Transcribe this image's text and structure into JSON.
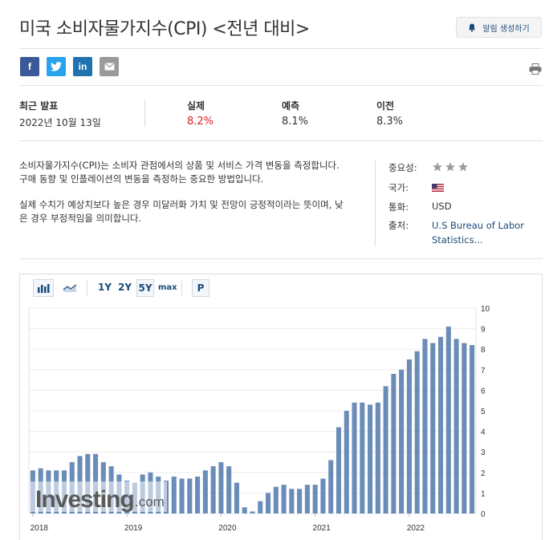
{
  "title": "미국 소비자물가지수(CPI) <전년 대비>",
  "alert_button": {
    "label": "알림 생성하기",
    "icon": "bell-icon"
  },
  "share": {
    "facebook": "f",
    "twitter": "twitter",
    "linkedin": "in",
    "email": "email",
    "print": "print"
  },
  "stats": {
    "latest_label": "최근 발표",
    "latest_date": "2022년 10월 13일",
    "actual_label": "실제",
    "actual_value": "8.2%",
    "forecast_label": "예측",
    "forecast_value": "8.1%",
    "previous_label": "이전",
    "previous_value": "8.3%",
    "actual_color": "#dc1f1f"
  },
  "description": {
    "p1": "소비자물가지수(CPI)는 소비자 관점에서의 상품 및 서비스 가격 변동을 측정합니다. 구매 동향 및 인플레이션의 변동을 측정하는 중요한 방법입니다.",
    "p2": "실제 수치가 예상치보다 높은 경우 미달러화 가치 및 전망이 긍정적이라는 뜻이며, 낮은 경우 부정적임을 의미합니다."
  },
  "meta": {
    "importance_label": "중요성:",
    "importance_stars": 3,
    "country_label": "국가:",
    "country_flag": "us-flag-icon",
    "currency_label": "통화:",
    "currency_value": "USD",
    "source_label": "출처:",
    "source_value": "U.S Bureau of Labor Statistics..."
  },
  "chart_toolbar": {
    "bar_icon": "bar-chart-icon",
    "line_icon": "line-chart-icon",
    "ranges": [
      "1Y",
      "2Y",
      "5Y",
      "max"
    ],
    "selected_range": "5Y",
    "p_label": "P"
  },
  "watermark": {
    "brand": "Investing",
    "suffix": ".com"
  },
  "chart_data": {
    "type": "bar",
    "color": "#6a8cb8",
    "xlabel": "",
    "ylabel": "",
    "ylim": [
      0,
      10
    ],
    "y_ticks": [
      "0",
      "1",
      "2",
      "3",
      "4",
      "5",
      "6",
      "7",
      "8",
      "9",
      "10"
    ],
    "x_ticks": [
      "2018",
      "2019",
      "2020",
      "2021",
      "2022"
    ],
    "grid": true,
    "start_month": "2018-01",
    "values": [
      2.1,
      2.2,
      2.1,
      2.1,
      2.1,
      2.5,
      2.8,
      2.9,
      2.9,
      2.5,
      2.3,
      1.9,
      1.6,
      1.5,
      1.9,
      2.0,
      1.8,
      1.6,
      1.8,
      1.7,
      1.7,
      1.8,
      2.1,
      2.3,
      2.5,
      2.3,
      1.5,
      0.3,
      0.1,
      0.6,
      1.0,
      1.3,
      1.4,
      1.2,
      1.2,
      1.4,
      1.4,
      1.7,
      2.6,
      4.2,
      5.0,
      5.4,
      5.4,
      5.3,
      5.4,
      6.2,
      6.8,
      7.0,
      7.5,
      7.9,
      8.5,
      8.3,
      8.6,
      9.1,
      8.5,
      8.3,
      8.2
    ]
  }
}
